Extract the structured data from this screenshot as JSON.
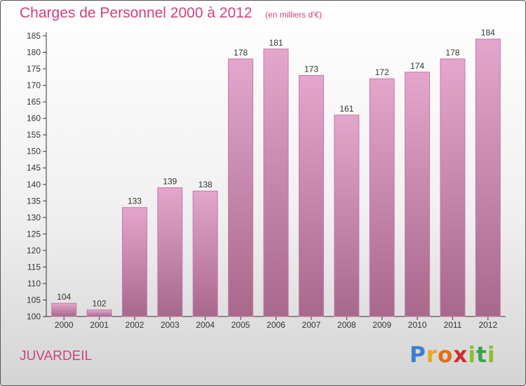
{
  "header": {
    "title": "Charges de Personnel 2000 à 2012",
    "subtitle": "(en milliers d'€)"
  },
  "footer": {
    "place": "JUVARDEIL"
  },
  "logo": {
    "letters": [
      "P",
      "r",
      "o",
      "x",
      "i",
      "t",
      "i"
    ]
  },
  "colors": {
    "accent": "#d04080",
    "bar_top": "#e4a6cc",
    "bar_bottom": "#a8688c",
    "bar_stroke": "#c07ca6"
  },
  "chart_data": {
    "type": "bar",
    "title": "Charges de Personnel 2000 à 2012",
    "subtitle": "(en milliers d'€)",
    "xlabel": "",
    "ylabel": "",
    "categories": [
      "2000",
      "2001",
      "2002",
      "2003",
      "2004",
      "2005",
      "2006",
      "2007",
      "2008",
      "2009",
      "2010",
      "2011",
      "2012"
    ],
    "values": [
      104,
      102,
      133,
      139,
      138,
      178,
      181,
      173,
      161,
      172,
      174,
      178,
      184
    ],
    "ylim": [
      100,
      185
    ],
    "yticks": [
      100,
      105,
      110,
      115,
      120,
      125,
      130,
      135,
      140,
      145,
      150,
      155,
      160,
      165,
      170,
      175,
      180,
      185
    ],
    "grid": false,
    "legend": "none"
  }
}
